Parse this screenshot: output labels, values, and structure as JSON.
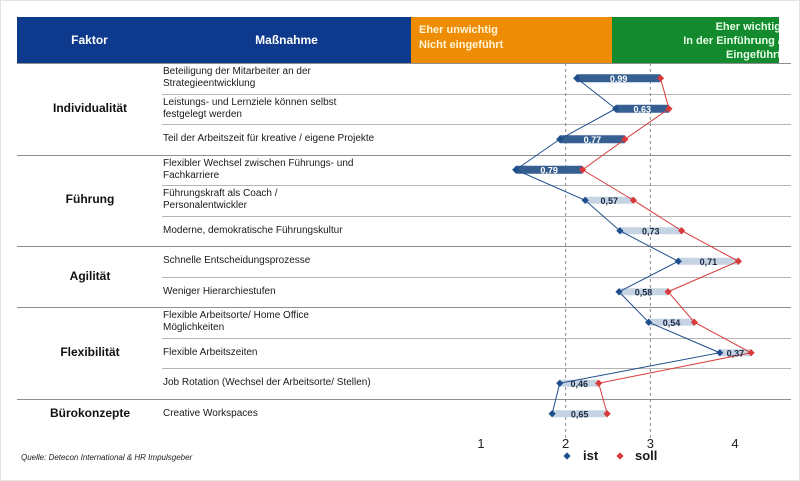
{
  "header": {
    "faktor": "Faktor",
    "massnahme": "Maßnahme",
    "low_line1": "Eher unwichtig",
    "low_line2": "Nicht eingeführt",
    "high_line1": "Eher wichtig",
    "high_line2": "In der Einführung /",
    "high_line3": "Eingeführt"
  },
  "faktors": [
    {
      "label": "Individualität",
      "rows": 3
    },
    {
      "label": "Führung",
      "rows": 3
    },
    {
      "label": "Agilität",
      "rows": 2
    },
    {
      "label": "Flexibilität",
      "rows": 3
    },
    {
      "label": "Bürokonzepte",
      "rows": 1
    }
  ],
  "source": "Quelle: Detecon International & HR Impulsgeber",
  "colors": {
    "ist": "#1f4e8c",
    "soll": "#d93a3a",
    "bar_dark": "#365f91",
    "bar_light": "#c5d3e3",
    "dash": "#8a8a8a"
  },
  "chart_data": {
    "type": "dumbbell",
    "x_axis": {
      "ticks": [
        1,
        2,
        3,
        4
      ],
      "range": [
        1,
        4
      ],
      "dashed_gridlines": [
        2,
        3
      ]
    },
    "legend": {
      "position": "bottom",
      "ist": "ist",
      "soll": "soll"
    },
    "categories": [
      "Beteiligung der Mitarbeiter an der Strategieentwicklung",
      "Leistungs- und Lernziele können  selbst festgelegt werden",
      "Teil der Arbeitszeit für kreative  / eigene Projekte",
      "Flexibler Wechsel zwischen Führungs- und Fachkarriere",
      "Führungskraft als Coach / Personalentwickler",
      "Moderne,  demokratische Führungskultur",
      "Schnelle Entscheidungsprozesse",
      "Weniger Hierarchiestufen",
      "Flexible Arbeitsorte/  Home Office Möglichkeiten",
      "Flexible Arbeitszeiten",
      "Job Rotation  (Wechsel der Arbeitsorte/ Stellen)",
      "Creative  Workspaces"
    ],
    "label_lines": [
      [
        "Beteiligung der Mitarbeiter an der",
        "Strategieentwicklung"
      ],
      [
        "Leistungs- und Lernziele können  selbst",
        "festgelegt werden"
      ],
      [
        "Teil der Arbeitszeit für kreative  / eigene Projekte"
      ],
      [
        "Flexibler Wechsel zwischen Führungs- und",
        "Fachkarriere"
      ],
      [
        "Führungskraft als Coach /",
        "Personalentwickler"
      ],
      [
        "Moderne,  demokratische Führungskultur"
      ],
      [
        "Schnelle Entscheidungsprozesse"
      ],
      [
        "Weniger Hierarchiestufen"
      ],
      [
        "Flexible Arbeitsorte/  Home Office",
        "Möglichkeiten"
      ],
      [
        "Flexible Arbeitszeiten"
      ],
      [
        "Job Rotation  (Wechsel der Arbeitsorte/ Stellen)"
      ],
      [
        "Creative  Workspaces"
      ]
    ],
    "series": [
      {
        "name": "ist",
        "values": [
          2.13,
          2.59,
          1.93,
          1.41,
          2.23,
          2.64,
          3.33,
          2.63,
          2.98,
          3.82,
          1.93,
          1.84
        ]
      },
      {
        "name": "soll",
        "values": [
          3.12,
          3.22,
          2.7,
          2.2,
          2.8,
          3.37,
          4.04,
          3.21,
          3.52,
          4.19,
          2.39,
          2.49
        ]
      }
    ],
    "gap_labels": [
      "0,99",
      "0,63",
      "0,77",
      "0,79",
      "0,57",
      "0,73",
      "0,71",
      "0,58",
      "0,54",
      "0,37",
      "0,46",
      "0,65"
    ],
    "bar_style": [
      "dark",
      "dark",
      "dark",
      "dark",
      "light",
      "light",
      "light",
      "light",
      "light",
      "light",
      "light",
      "light"
    ]
  }
}
